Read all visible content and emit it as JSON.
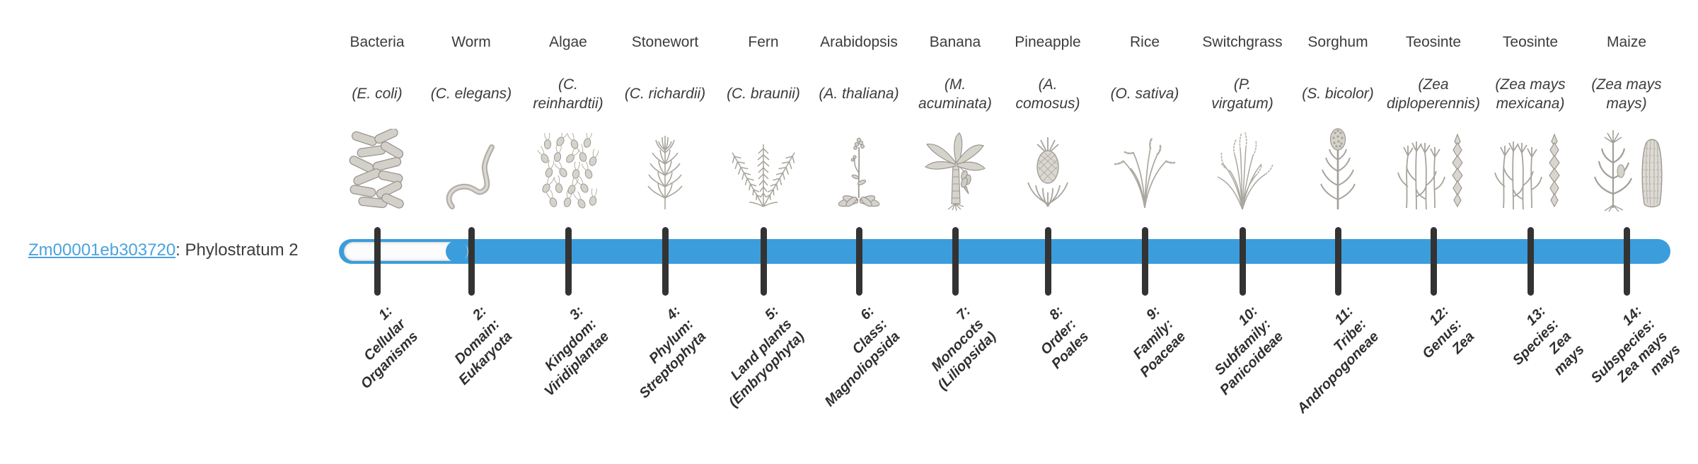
{
  "gene": {
    "id": "Zm00001eb303720",
    "suffix": ": Phylostratum 2"
  },
  "track": {
    "bar_color": "#3b9ddc",
    "tick_color": "#333333",
    "origin_stratum": 2,
    "stratum_count": 14
  },
  "organisms": [
    {
      "common": "Bacteria",
      "scientific": "(E. coli)",
      "icon": "bacteria-icon"
    },
    {
      "common": "Worm",
      "scientific": "(C. elegans)",
      "icon": "worm-icon"
    },
    {
      "common": "Algae",
      "scientific": "(C.\nreinhardtii)",
      "icon": "algae-icon"
    },
    {
      "common": "Stonewort",
      "scientific": "(C. richardii)",
      "icon": "stonewort-icon"
    },
    {
      "common": "Fern",
      "scientific": "(C. braunii)",
      "icon": "fern-icon"
    },
    {
      "common": "Arabidopsis",
      "scientific": "(A. thaliana)",
      "icon": "arabidopsis-icon"
    },
    {
      "common": "Banana",
      "scientific": "(M.\nacuminata)",
      "icon": "banana-icon"
    },
    {
      "common": "Pineapple",
      "scientific": "(A.\ncomosus)",
      "icon": "pineapple-icon"
    },
    {
      "common": "Rice",
      "scientific": "(O. sativa)",
      "icon": "rice-icon"
    },
    {
      "common": "Switchgrass",
      "scientific": "(P.\nvirgatum)",
      "icon": "switchgrass-icon"
    },
    {
      "common": "Sorghum",
      "scientific": "(S. bicolor)",
      "icon": "sorghum-icon"
    },
    {
      "common": "Teosinte",
      "scientific": "(Zea\ndiploperennis)",
      "icon": "teosinte-icon"
    },
    {
      "common": "Teosinte",
      "scientific": "(Zea mays\nmexicana)",
      "icon": "teosinte-icon"
    },
    {
      "common": "Maize",
      "scientific": "(Zea mays\nmays)",
      "icon": "maize-icon"
    }
  ],
  "strata": [
    {
      "label": "1:\nCellular\nOrganisms"
    },
    {
      "label": "2:\nDomain:\nEukaryota"
    },
    {
      "label": "3:\nKingdom:\nViridiplantae"
    },
    {
      "label": "4:\nPhylum:\nStreptophyta"
    },
    {
      "label": "5:\nLand plants\n(Embryophyta)"
    },
    {
      "label": "6:\nClass:\nMagnoliopsida"
    },
    {
      "label": "7:\nMonocots\n(Liliopsida)"
    },
    {
      "label": "8:\nOrder:\nPoales"
    },
    {
      "label": "9:\nFamily:\nPoaceae"
    },
    {
      "label": "10:\nSubfamily:\nPanicoideae"
    },
    {
      "label": "11:\nTribe:\nAndropogoneae"
    },
    {
      "label": "12:\nGenus:\nZea"
    },
    {
      "label": "13:\nSpecies:\nZea\nmays"
    },
    {
      "label": "14:\nSubspecies:\nZea mays\nmays"
    }
  ]
}
